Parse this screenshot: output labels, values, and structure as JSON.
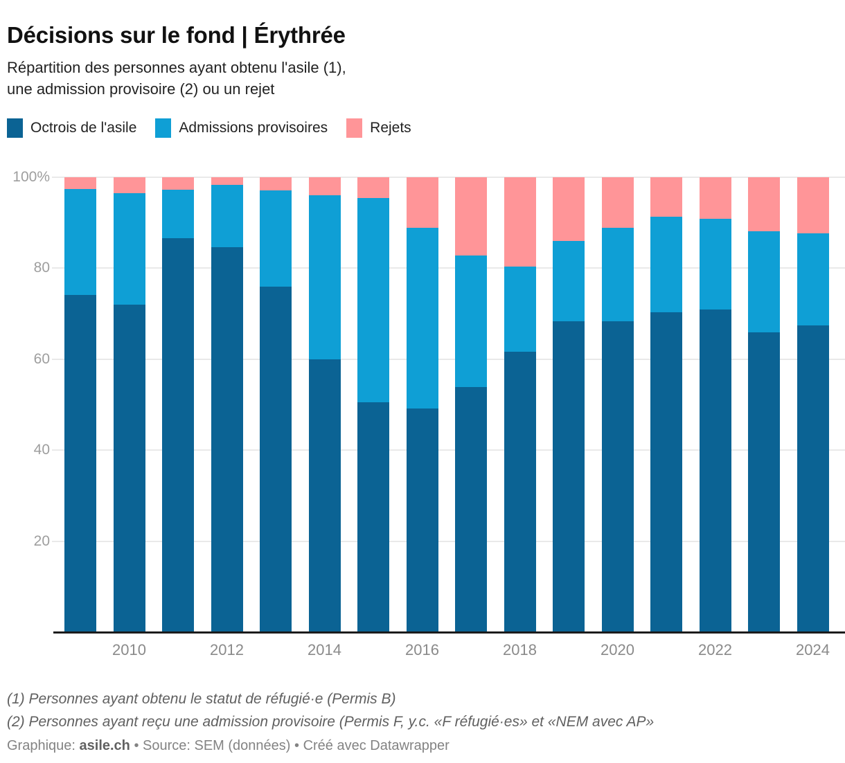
{
  "header": {
    "title": "Décisions sur le fond | Érythrée",
    "subtitle_line1": "Répartition des personnes ayant obtenu l'asile (1),",
    "subtitle_line2": "une admission provisoire (2) ou un rejet"
  },
  "legend": {
    "items": [
      {
        "label": "Octrois de l'asile",
        "color": "#0b6394"
      },
      {
        "label": "Admissions provisoires",
        "color": "#0f9fd5"
      },
      {
        "label": "Rejets",
        "color": "#ff9598"
      }
    ]
  },
  "chart_data": {
    "type": "bar",
    "stacked": true,
    "unit": "%",
    "categories": [
      2009,
      2010,
      2011,
      2012,
      2013,
      2014,
      2015,
      2016,
      2017,
      2018,
      2019,
      2020,
      2021,
      2022,
      2023,
      2024
    ],
    "series": [
      {
        "name": "Octrois de l'asile",
        "color": "#0b6394",
        "values": [
          74.2,
          72.0,
          86.6,
          84.6,
          76.0,
          60.0,
          50.6,
          49.2,
          53.9,
          61.7,
          68.4,
          68.3,
          70.3,
          70.9,
          65.9,
          67.5
        ]
      },
      {
        "name": "Admissions provisoires",
        "color": "#0f9fd5",
        "values": [
          23.2,
          24.5,
          10.7,
          13.7,
          21.1,
          36.0,
          44.8,
          39.7,
          28.9,
          18.7,
          17.6,
          20.6,
          21.1,
          20.0,
          22.2,
          20.2
        ]
      },
      {
        "name": "Rejets",
        "color": "#ff9598",
        "values": [
          2.6,
          3.5,
          2.7,
          1.7,
          2.9,
          4.0,
          4.6,
          11.1,
          17.2,
          19.6,
          14.0,
          11.1,
          8.6,
          9.1,
          11.9,
          12.3
        ]
      }
    ],
    "title": "Décisions sur le fond | Érythrée",
    "xlabel": "",
    "ylabel": "",
    "ylim": [
      0,
      100
    ],
    "grid": true,
    "legend_position": "top",
    "y_ticks": [
      {
        "value": 100,
        "label": "100%"
      },
      {
        "value": 80,
        "label": "80"
      },
      {
        "value": 60,
        "label": "60"
      },
      {
        "value": 40,
        "label": "40"
      },
      {
        "value": 20,
        "label": "20"
      }
    ],
    "x_tick_labels": [
      "2010",
      "2012",
      "2014",
      "2016",
      "2018",
      "2020",
      "2022",
      "2024"
    ]
  },
  "footer": {
    "note1": "(1) Personnes ayant obtenu le statut de réfugié·e (Permis B)",
    "note2": "(2) Personnes ayant reçu une admission provisoire (Permis F, y.c. «F réfugié·es» et «NEM avec AP»",
    "credit_prefix": "Graphique: ",
    "credit_brand": "asile.ch",
    "credit_rest": " • Source: SEM (données) • Créé avec Datawrapper"
  }
}
